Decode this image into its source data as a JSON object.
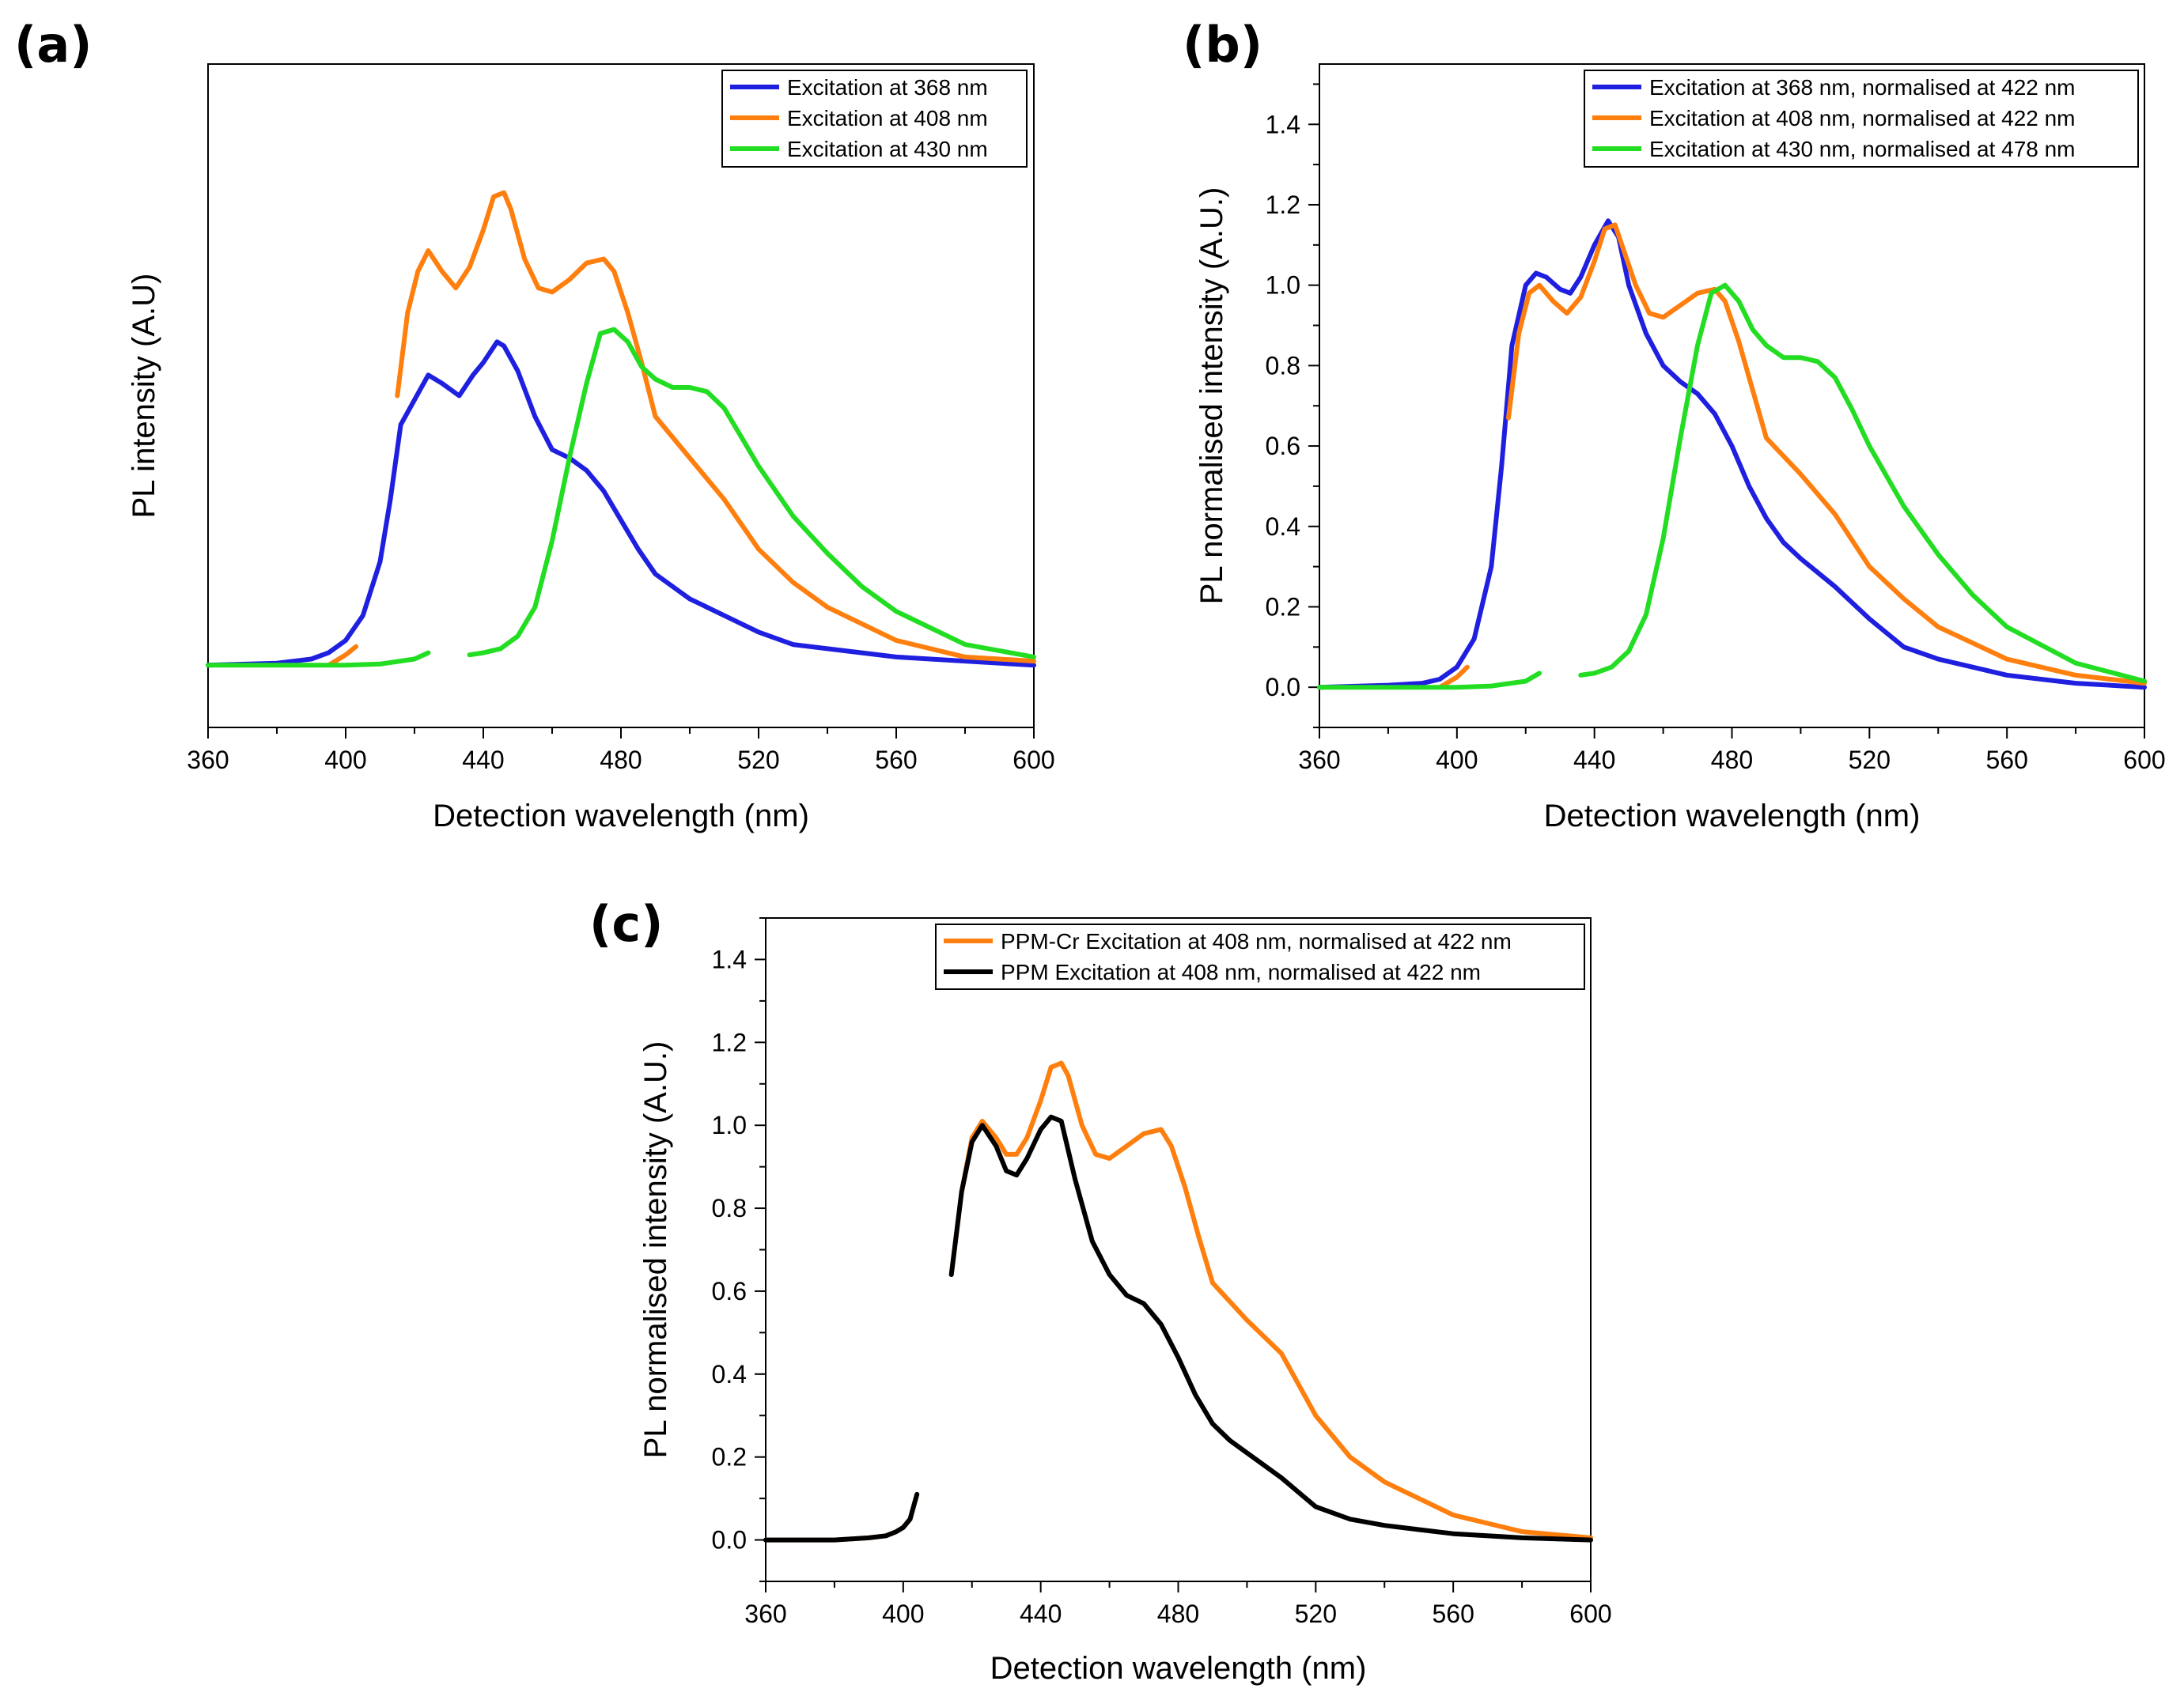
{
  "chart_data": [
    {
      "id": "a",
      "panel_label": "(a)",
      "type": "line",
      "title": "",
      "xlabel": "Detection wavelength (nm)",
      "ylabel": "PL intensity (A.U)",
      "xlim": [
        360,
        600
      ],
      "ylim": [
        -0.15,
        1.45
      ],
      "xticks": [
        360,
        400,
        440,
        480,
        520,
        560,
        600
      ],
      "xtick_labels": [
        "360",
        "400",
        "440",
        "480",
        "520",
        "560",
        "600"
      ],
      "yticks": [],
      "ytick_labels": [],
      "legend_position": "top-right",
      "series": [
        {
          "name": "Excitation at 368 nm",
          "color": "#1f1fe0",
          "x": [
            360,
            380,
            390,
            395,
            400,
            405,
            410,
            413,
            416,
            420,
            424,
            428,
            433,
            437,
            440,
            444,
            446,
            450,
            455,
            460,
            465,
            470,
            475,
            480,
            485,
            490,
            500,
            510,
            520,
            530,
            540,
            550,
            560,
            580,
            600
          ],
          "y": [
            0.0,
            0.005,
            0.015,
            0.03,
            0.06,
            0.12,
            0.25,
            0.4,
            0.58,
            0.64,
            0.7,
            0.68,
            0.65,
            0.7,
            0.73,
            0.78,
            0.77,
            0.71,
            0.6,
            0.52,
            0.5,
            0.47,
            0.42,
            0.35,
            0.28,
            0.22,
            0.16,
            0.12,
            0.08,
            0.05,
            0.04,
            0.03,
            0.02,
            0.01,
            0.0
          ]
        },
        {
          "name": "Excitation at 408 nm",
          "color": "#ff7f0e",
          "segments": [
            {
              "x": [
                395,
                398,
                400,
                403
              ],
              "y": [
                0.0,
                0.015,
                0.025,
                0.045
              ]
            },
            {
              "x": [
                415,
                418,
                421,
                424,
                428,
                432,
                436,
                440,
                443,
                446,
                448,
                452,
                456,
                460,
                465,
                470,
                475,
                478,
                482,
                486,
                490,
                500,
                510,
                520,
                530,
                540,
                550,
                560,
                580,
                600
              ],
              "y": [
                0.65,
                0.85,
                0.95,
                1.0,
                0.95,
                0.91,
                0.96,
                1.05,
                1.13,
                1.14,
                1.1,
                0.98,
                0.91,
                0.9,
                0.93,
                0.97,
                0.98,
                0.95,
                0.85,
                0.73,
                0.6,
                0.5,
                0.4,
                0.28,
                0.2,
                0.14,
                0.1,
                0.06,
                0.02,
                0.01
              ]
            }
          ]
        },
        {
          "name": "Excitation at 430 nm",
          "color": "#22dd22",
          "segments": [
            {
              "x": [
                360,
                380,
                400,
                410,
                420,
                424
              ],
              "y": [
                0.0,
                0.0,
                0.0,
                0.003,
                0.015,
                0.03
              ]
            },
            {
              "x": [
                436,
                440,
                445,
                450,
                455,
                460,
                465,
                470,
                474,
                478,
                482,
                486,
                490,
                495,
                500,
                505,
                510,
                515,
                520,
                530,
                540,
                550,
                560,
                580,
                600
              ],
              "y": [
                0.025,
                0.03,
                0.04,
                0.07,
                0.14,
                0.3,
                0.5,
                0.68,
                0.8,
                0.81,
                0.78,
                0.72,
                0.69,
                0.67,
                0.67,
                0.66,
                0.62,
                0.55,
                0.48,
                0.36,
                0.27,
                0.19,
                0.13,
                0.05,
                0.02
              ]
            }
          ]
        }
      ]
    },
    {
      "id": "b",
      "panel_label": "(b)",
      "type": "line",
      "title": "",
      "xlabel": "Detection wavelength (nm)",
      "ylabel": "PL normalised intensity (A.U.)",
      "xlim": [
        360,
        600
      ],
      "ylim": [
        -0.1,
        1.55
      ],
      "xticks": [
        360,
        400,
        440,
        480,
        520,
        560,
        600
      ],
      "xtick_labels": [
        "360",
        "400",
        "440",
        "480",
        "520",
        "560",
        "600"
      ],
      "yticks": [
        0.0,
        0.2,
        0.4,
        0.6,
        0.8,
        1.0,
        1.2,
        1.4
      ],
      "ytick_labels": [
        "0.0",
        "0.2",
        "0.4",
        "0.6",
        "0.8",
        "1.0",
        "1.2",
        "1.4"
      ],
      "legend_position": "top-right",
      "series": [
        {
          "name": "Excitation at 368 nm, normalised at 422 nm",
          "color": "#1f1fe0",
          "x": [
            360,
            380,
            390,
            395,
            400,
            405,
            410,
            413,
            416,
            420,
            423,
            426,
            430,
            433,
            436,
            440,
            444,
            447,
            450,
            455,
            460,
            465,
            470,
            475,
            480,
            485,
            490,
            495,
            500,
            510,
            520,
            530,
            540,
            550,
            560,
            580,
            600
          ],
          "y": [
            0.0,
            0.005,
            0.01,
            0.02,
            0.05,
            0.12,
            0.3,
            0.55,
            0.85,
            1.0,
            1.03,
            1.02,
            0.99,
            0.98,
            1.02,
            1.1,
            1.16,
            1.12,
            1.0,
            0.88,
            0.8,
            0.76,
            0.73,
            0.68,
            0.6,
            0.5,
            0.42,
            0.36,
            0.32,
            0.25,
            0.17,
            0.1,
            0.07,
            0.05,
            0.03,
            0.01,
            0.0
          ]
        },
        {
          "name": "Excitation at 408 nm, normalised at 422 nm",
          "color": "#ff7f0e",
          "segments": [
            {
              "x": [
                395,
                398,
                400,
                403
              ],
              "y": [
                0.0,
                0.015,
                0.025,
                0.05
              ]
            },
            {
              "x": [
                415,
                418,
                421,
                424,
                428,
                432,
                436,
                440,
                443,
                446,
                448,
                452,
                456,
                460,
                465,
                470,
                475,
                478,
                482,
                486,
                490,
                500,
                510,
                520,
                530,
                540,
                550,
                560,
                580,
                600
              ],
              "y": [
                0.67,
                0.88,
                0.98,
                1.0,
                0.96,
                0.93,
                0.97,
                1.06,
                1.14,
                1.15,
                1.1,
                1.0,
                0.93,
                0.92,
                0.95,
                0.98,
                0.99,
                0.96,
                0.86,
                0.74,
                0.62,
                0.53,
                0.43,
                0.3,
                0.22,
                0.15,
                0.11,
                0.07,
                0.03,
                0.01
              ]
            }
          ]
        },
        {
          "name": "Excitation at 430 nm, normalised at 478 nm",
          "color": "#22dd22",
          "segments": [
            {
              "x": [
                360,
                380,
                400,
                410,
                420,
                424
              ],
              "y": [
                0.0,
                0.0,
                0.0,
                0.003,
                0.015,
                0.035
              ]
            },
            {
              "x": [
                436,
                440,
                445,
                450,
                455,
                460,
                465,
                470,
                474,
                478,
                482,
                486,
                490,
                495,
                500,
                505,
                510,
                515,
                520,
                530,
                540,
                550,
                560,
                580,
                600
              ],
              "y": [
                0.03,
                0.035,
                0.05,
                0.09,
                0.18,
                0.37,
                0.62,
                0.85,
                0.98,
                1.0,
                0.96,
                0.89,
                0.85,
                0.82,
                0.82,
                0.81,
                0.77,
                0.69,
                0.6,
                0.45,
                0.33,
                0.23,
                0.15,
                0.06,
                0.015
              ]
            }
          ]
        }
      ]
    },
    {
      "id": "c",
      "panel_label": "(c)",
      "type": "line",
      "title": "",
      "xlabel": "Detection wavelength (nm)",
      "ylabel": "PL normalised intensity (A.U.)",
      "xlim": [
        360,
        600
      ],
      "ylim": [
        -0.1,
        1.5
      ],
      "xticks": [
        360,
        400,
        440,
        480,
        520,
        560,
        600
      ],
      "xtick_labels": [
        "360",
        "400",
        "440",
        "480",
        "520",
        "560",
        "600"
      ],
      "yticks": [
        0.0,
        0.2,
        0.4,
        0.6,
        0.8,
        1.0,
        1.2,
        1.4
      ],
      "ytick_labels": [
        "0.0",
        "0.2",
        "0.4",
        "0.6",
        "0.8",
        "1.0",
        "1.2",
        "1.4"
      ],
      "legend_position": "top-right",
      "series": [
        {
          "name": "PPM-Cr Excitation at 408 nm, normalised at 422 nm",
          "color": "#ff7f0e",
          "segments": [
            {
              "x": [
                360,
                380,
                390,
                395,
                398,
                400,
                402,
                404
              ],
              "y": [
                0.0,
                0.0,
                0.005,
                0.01,
                0.02,
                0.03,
                0.05,
                0.11
              ]
            },
            {
              "x": [
                414,
                417,
                420,
                423,
                427,
                430,
                433,
                436,
                440,
                443,
                446,
                448,
                452,
                456,
                460,
                465,
                470,
                475,
                478,
                482,
                486,
                490,
                500,
                510,
                520,
                530,
                540,
                550,
                560,
                580,
                600
              ],
              "y": [
                0.64,
                0.84,
                0.97,
                1.01,
                0.97,
                0.93,
                0.93,
                0.97,
                1.06,
                1.14,
                1.15,
                1.12,
                1.0,
                0.93,
                0.92,
                0.95,
                0.98,
                0.99,
                0.95,
                0.85,
                0.73,
                0.62,
                0.53,
                0.45,
                0.3,
                0.2,
                0.14,
                0.1,
                0.06,
                0.02,
                0.005
              ]
            }
          ]
        },
        {
          "name": "PPM Excitation at 408 nm, normalised at 422 nm",
          "color": "#000000",
          "segments": [
            {
              "x": [
                360,
                380,
                390,
                395,
                398,
                400,
                402,
                404
              ],
              "y": [
                0.0,
                0.0,
                0.005,
                0.01,
                0.02,
                0.03,
                0.05,
                0.11
              ]
            },
            {
              "x": [
                414,
                417,
                420,
                423,
                427,
                430,
                433,
                436,
                440,
                443,
                446,
                450,
                455,
                460,
                465,
                470,
                475,
                480,
                485,
                490,
                495,
                500,
                510,
                520,
                530,
                540,
                550,
                560,
                580,
                600
              ],
              "y": [
                0.64,
                0.84,
                0.96,
                1.0,
                0.95,
                0.89,
                0.88,
                0.92,
                0.99,
                1.02,
                1.01,
                0.87,
                0.72,
                0.64,
                0.59,
                0.57,
                0.52,
                0.44,
                0.35,
                0.28,
                0.24,
                0.21,
                0.15,
                0.08,
                0.05,
                0.035,
                0.025,
                0.015,
                0.005,
                0.0
              ]
            }
          ]
        }
      ]
    }
  ]
}
